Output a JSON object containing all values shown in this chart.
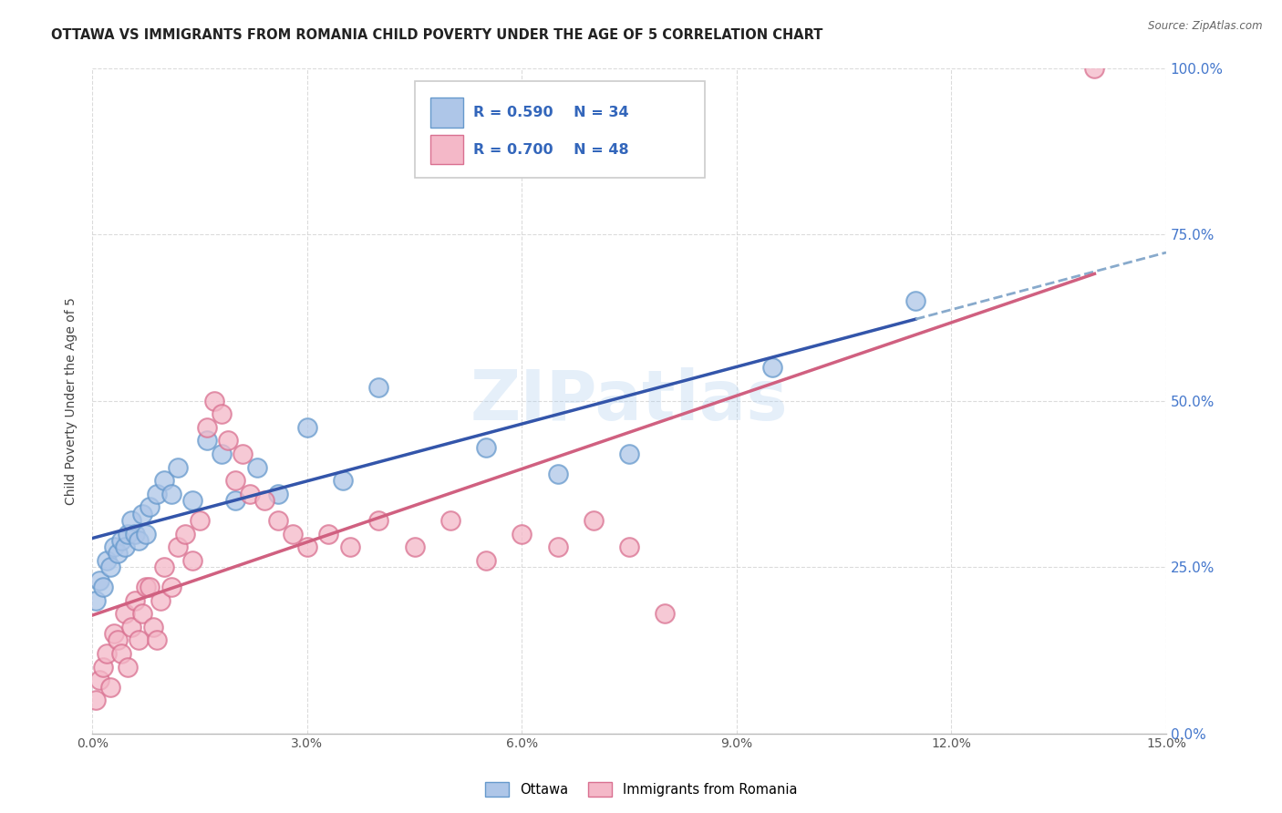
{
  "title": "OTTAWA VS IMMIGRANTS FROM ROMANIA CHILD POVERTY UNDER THE AGE OF 5 CORRELATION CHART",
  "source": "Source: ZipAtlas.com",
  "ylabel": "Child Poverty Under the Age of 5",
  "xlim": [
    0.0,
    15.0
  ],
  "ylim": [
    0.0,
    100.0
  ],
  "xticks": [
    0.0,
    3.0,
    6.0,
    9.0,
    12.0,
    15.0
  ],
  "xtick_labels": [
    "0.0%",
    "3.0%",
    "6.0%",
    "9.0%",
    "12.0%",
    "15.0%"
  ],
  "yticks": [
    0.0,
    25.0,
    50.0,
    75.0,
    100.0
  ],
  "ytick_labels": [
    "0.0%",
    "25.0%",
    "50.0%",
    "75.0%",
    "100.0%"
  ],
  "watermark": "ZIPatlas",
  "ottawa_color": "#aec6e8",
  "ottawa_edge": "#6699cc",
  "romania_color": "#f4b8c8",
  "romania_edge": "#d97090",
  "ottawa_line_color": "#3355aa",
  "romania_line_color": "#d06080",
  "dashed_line_color": "#88aacc",
  "title_fontsize": 10.5,
  "axis_label_fontsize": 10,
  "tick_fontsize": 10,
  "background_color": "#ffffff",
  "grid_color": "#cccccc",
  "ottawa_R": "0.590",
  "ottawa_N": "34",
  "romania_R": "0.700",
  "romania_N": "48",
  "ottawa_x": [
    0.05,
    0.1,
    0.15,
    0.2,
    0.25,
    0.3,
    0.35,
    0.4,
    0.45,
    0.5,
    0.55,
    0.6,
    0.65,
    0.7,
    0.75,
    0.8,
    0.9,
    1.0,
    1.1,
    1.2,
    1.4,
    1.6,
    1.8,
    2.0,
    2.3,
    2.6,
    3.0,
    3.5,
    4.0,
    5.5,
    6.5,
    7.5,
    9.5,
    11.5
  ],
  "ottawa_y": [
    20,
    23,
    22,
    26,
    25,
    28,
    27,
    29,
    28,
    30,
    32,
    30,
    29,
    33,
    30,
    34,
    36,
    38,
    36,
    40,
    35,
    44,
    42,
    35,
    40,
    36,
    46,
    38,
    52,
    43,
    39,
    42,
    55,
    65
  ],
  "romania_x": [
    0.05,
    0.1,
    0.15,
    0.2,
    0.25,
    0.3,
    0.35,
    0.4,
    0.45,
    0.5,
    0.55,
    0.6,
    0.65,
    0.7,
    0.75,
    0.8,
    0.85,
    0.9,
    0.95,
    1.0,
    1.1,
    1.2,
    1.3,
    1.4,
    1.5,
    1.6,
    1.7,
    1.8,
    1.9,
    2.0,
    2.1,
    2.2,
    2.4,
    2.6,
    2.8,
    3.0,
    3.3,
    3.6,
    4.0,
    4.5,
    5.0,
    5.5,
    6.0,
    6.5,
    7.0,
    7.5,
    8.0,
    14.0
  ],
  "romania_y": [
    5,
    8,
    10,
    12,
    7,
    15,
    14,
    12,
    18,
    10,
    16,
    20,
    14,
    18,
    22,
    22,
    16,
    14,
    20,
    25,
    22,
    28,
    30,
    26,
    32,
    46,
    50,
    48,
    44,
    38,
    42,
    36,
    35,
    32,
    30,
    28,
    30,
    28,
    32,
    28,
    32,
    26,
    30,
    28,
    32,
    28,
    18,
    100
  ]
}
